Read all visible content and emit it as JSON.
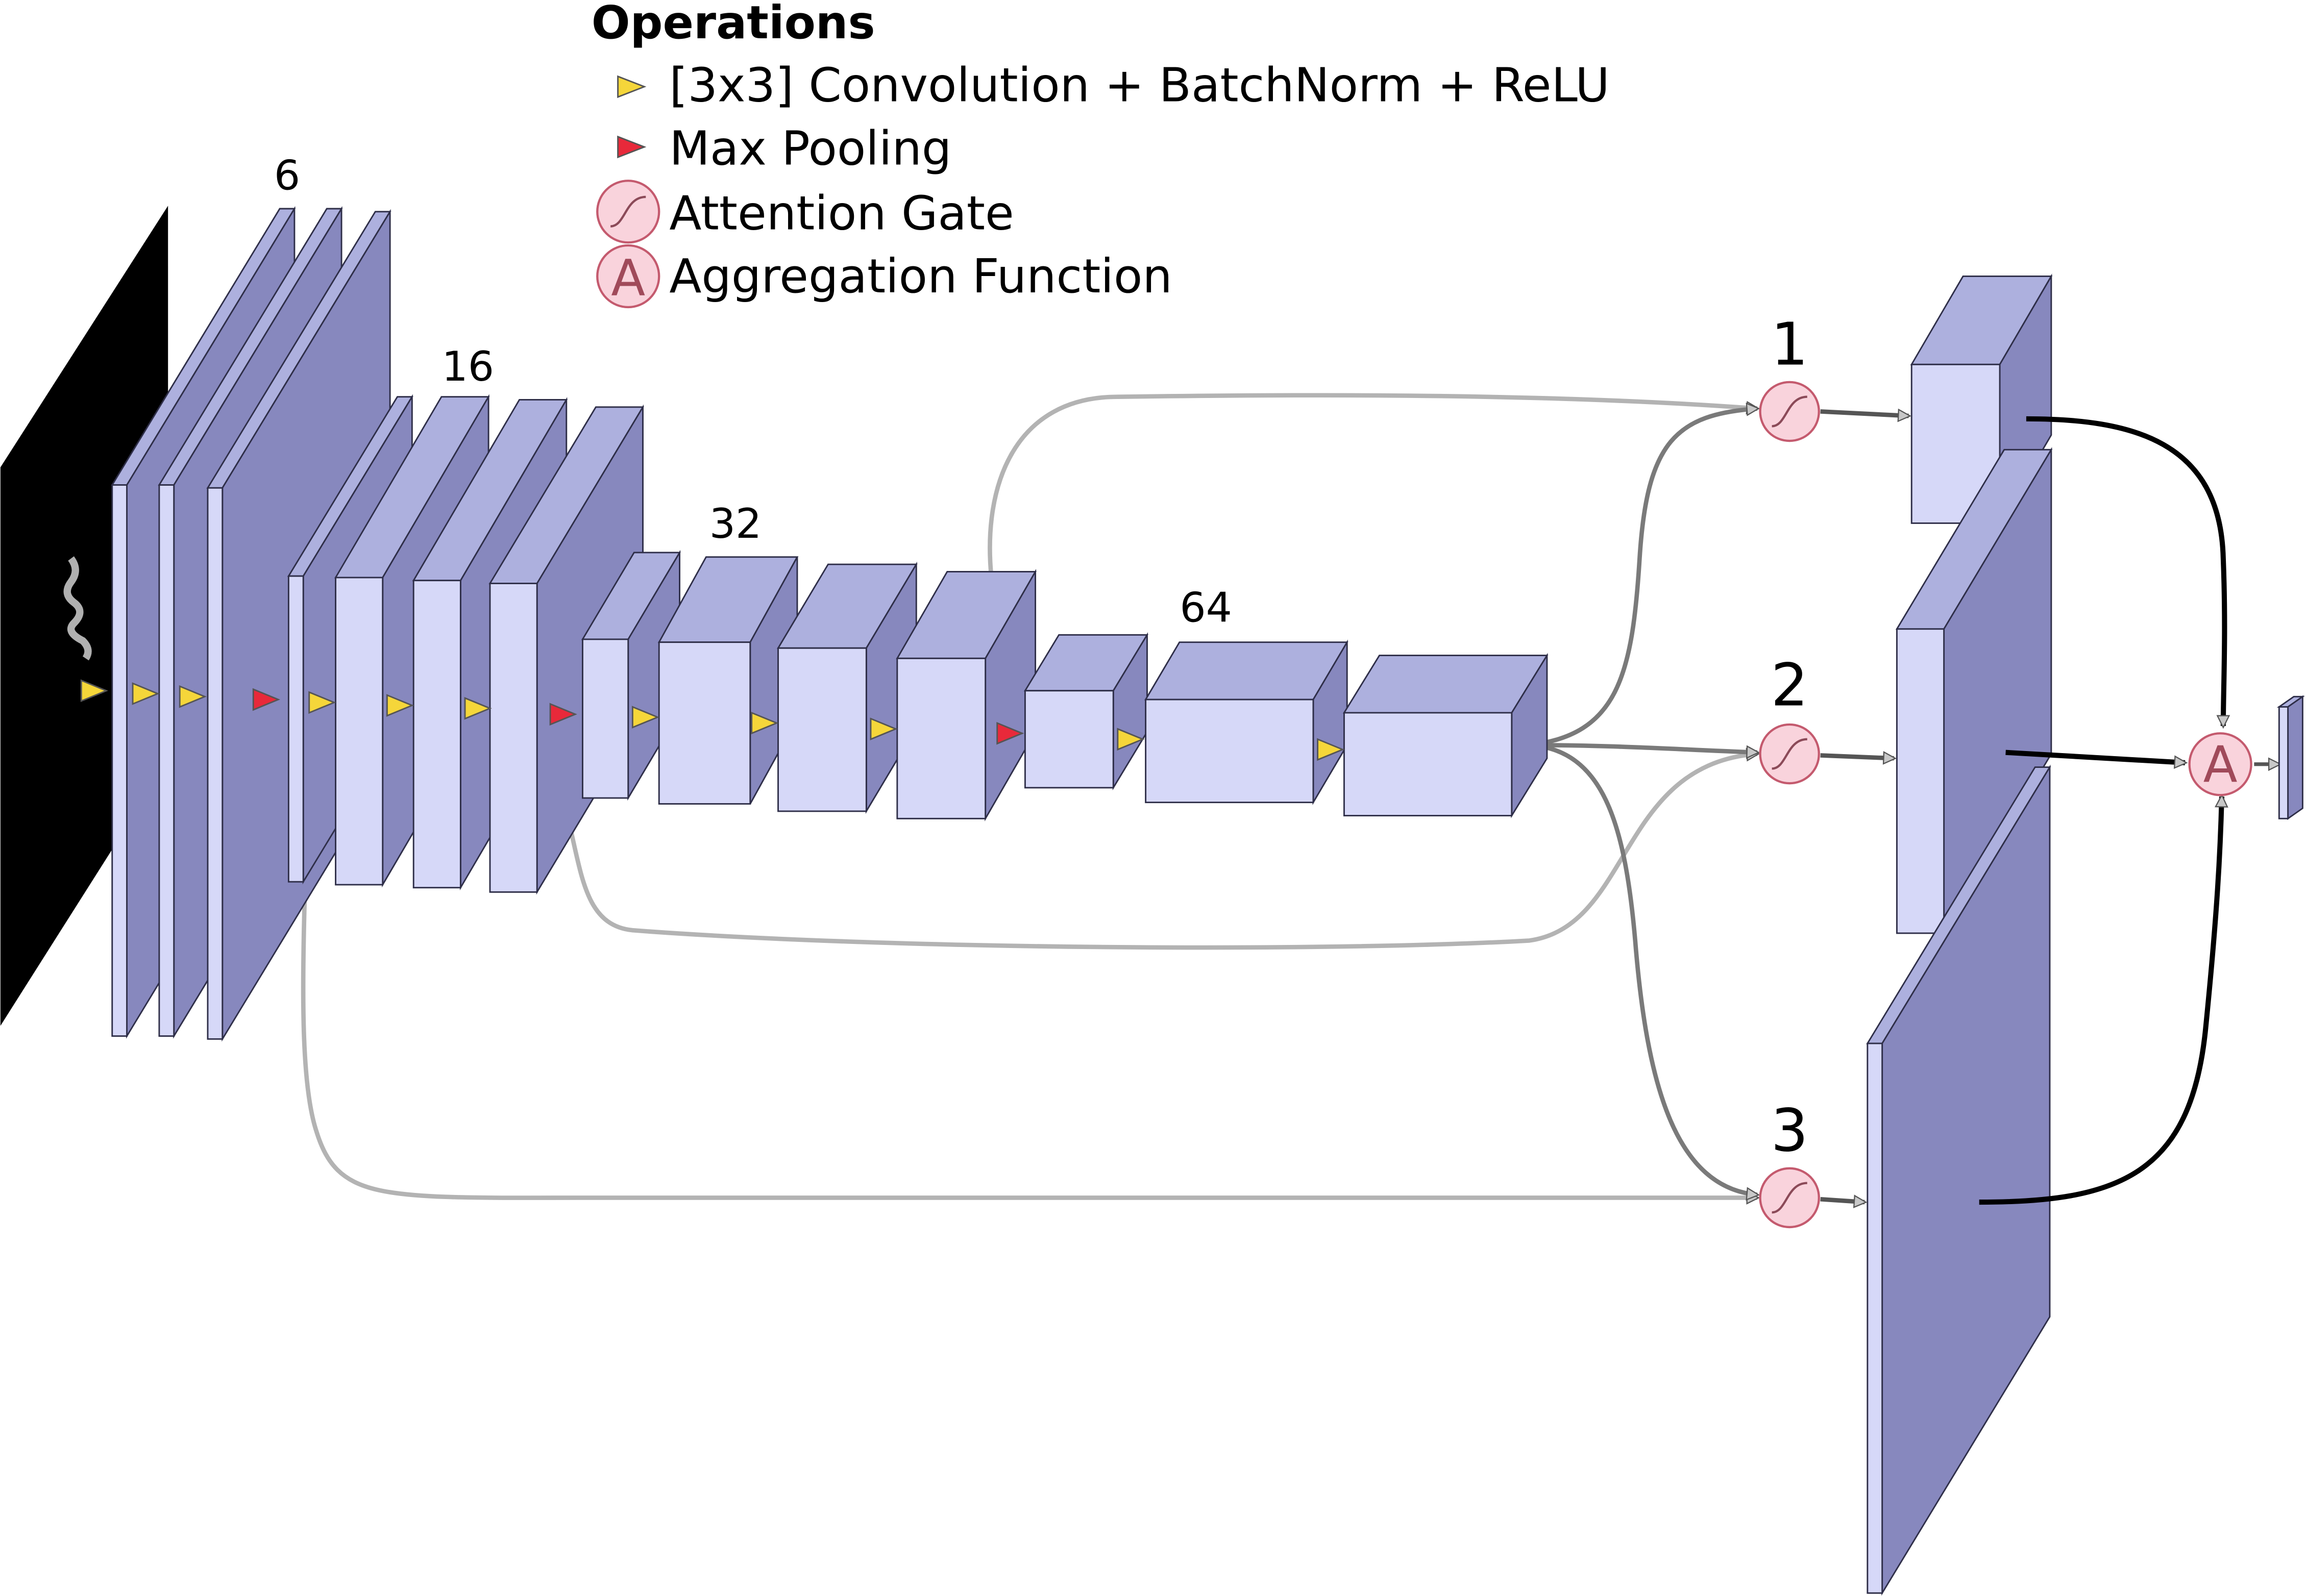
{
  "legend": {
    "title": "Operations",
    "items": [
      {
        "label": "[3x3] Convolution + BatchNorm + ReLU",
        "icon": "conv-triangle-icon",
        "color": "#f5d63a"
      },
      {
        "label": "Max Pooling",
        "icon": "maxpool-triangle-icon",
        "color": "#e8293a"
      },
      {
        "label": "Attention Gate",
        "icon": "attention-gate-icon",
        "color": "#f9d3dc"
      },
      {
        "label": "Aggregation Function",
        "icon": "aggregation-icon",
        "color": "#f9d3dc",
        "glyph": "A"
      }
    ]
  },
  "channel_labels": [
    "6",
    "16",
    "32",
    "64"
  ],
  "gate_labels": [
    "1",
    "2",
    "3"
  ],
  "aggregation_glyph": "A",
  "colors": {
    "block_front": "#d6d8f8",
    "block_top": "#adb0de",
    "block_side": "#8788be",
    "outline": "#2e2e48",
    "skip_light": "#b0b0b0",
    "skip_dark": "#7a7a7a",
    "output_line": "#000000",
    "gate_fill": "#f9d3dc",
    "gate_stroke": "#c45a6e",
    "input_image": "#000000"
  }
}
